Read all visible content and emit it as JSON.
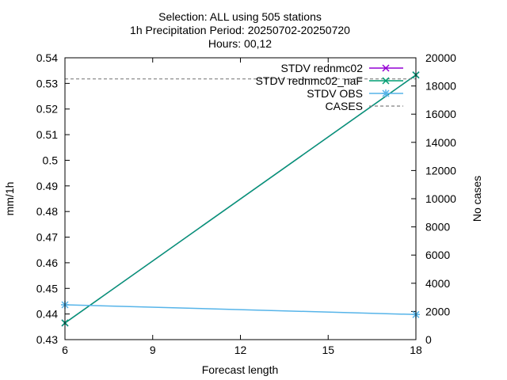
{
  "chart_data": {
    "type": "line",
    "title": [
      "Selection: ALL using   505 stations",
      "1h Precipitation   Period: 20250702-20250720",
      "Hours: 00,12"
    ],
    "xlabel": "Forecast length",
    "ylabel": "mm/1h",
    "y2label": "No cases",
    "x": [
      6,
      18
    ],
    "xticks": [
      6,
      9,
      12,
      15,
      18
    ],
    "xlim": [
      6,
      18
    ],
    "ylim": [
      0.43,
      0.54
    ],
    "yticks": [
      0.43,
      0.44,
      0.45,
      0.46,
      0.47,
      0.48,
      0.49,
      0.5,
      0.51,
      0.52,
      0.53,
      0.54
    ],
    "y2lim": [
      0,
      20000
    ],
    "y2ticks": [
      0,
      2000,
      4000,
      6000,
      8000,
      10000,
      12000,
      14000,
      16000,
      18000,
      20000
    ],
    "grid": false,
    "legend_position": "top-right",
    "series": [
      {
        "name": "STDV rednmc02",
        "axis": "y",
        "values": [
          0.4365,
          0.5333
        ],
        "color": "#9400d3",
        "marker": "x"
      },
      {
        "name": "STDV rednmc02_naF",
        "axis": "y",
        "values": [
          0.4365,
          0.5333
        ],
        "color": "#009e73",
        "marker": "x"
      },
      {
        "name": "STDV OBS",
        "axis": "y",
        "values": [
          0.4436,
          0.4398
        ],
        "color": "#56b4e9",
        "marker": "star"
      },
      {
        "name": "CASES",
        "axis": "y2",
        "values": [
          18500,
          18500
        ],
        "color": "#808080",
        "dash": true
      }
    ]
  }
}
